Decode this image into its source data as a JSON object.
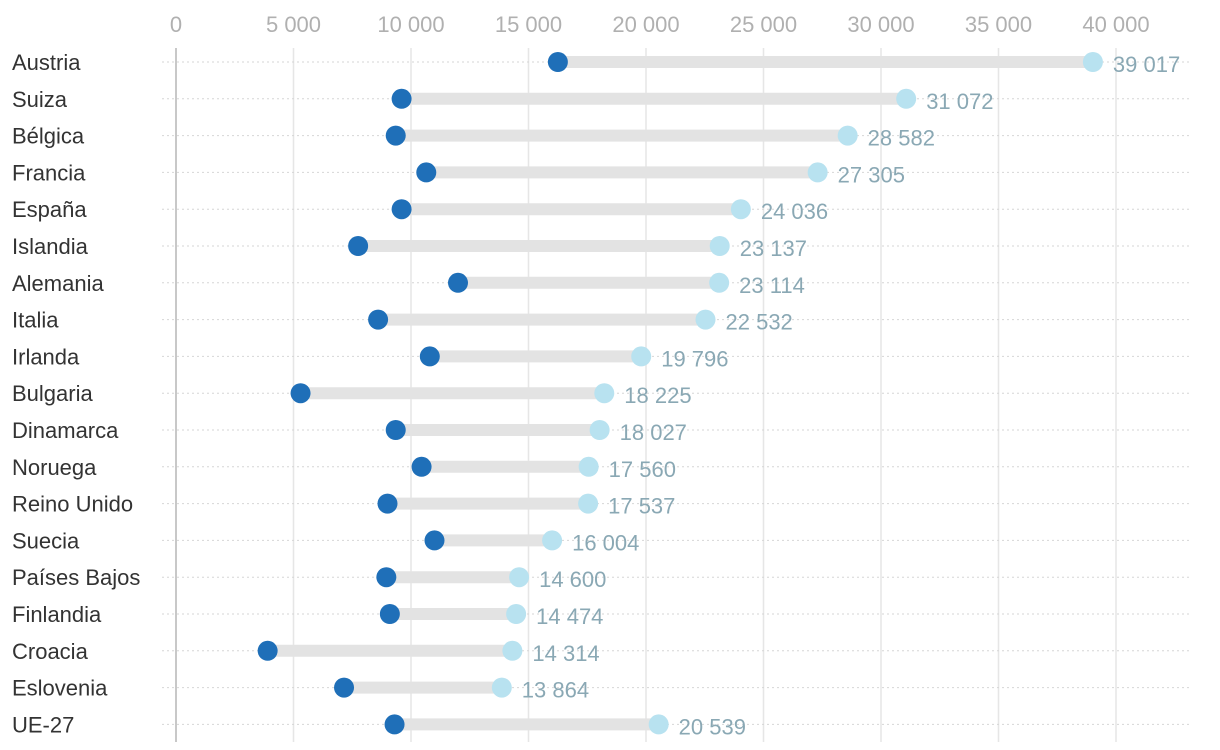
{
  "chart_data": {
    "type": "dumbbell",
    "title": "",
    "xlim": [
      0,
      40000
    ],
    "x_ticks": [
      0,
      5000,
      10000,
      15000,
      20000,
      25000,
      30000,
      35000,
      40000
    ],
    "x_tick_labels": [
      "0",
      "5 000",
      "10 000",
      "15 000",
      "20 000",
      "25 000",
      "30 000",
      "35 000",
      "40 000"
    ],
    "grid": true,
    "colors": {
      "start": "#1f6fb8",
      "end": "#b8e2f0",
      "bar": "#e3e3e3",
      "value_label": "#8aa8b4"
    },
    "categories": [
      "Austria",
      "Suiza",
      "Bélgica",
      "Francia",
      "España",
      "Islandia",
      "Alemania",
      "Italia",
      "Irlanda",
      "Bulgaria",
      "Dinamarca",
      "Noruega",
      "Reino Unido",
      "Suecia",
      "Países Bajos",
      "Finlandia",
      "Croacia",
      "Eslovenia",
      "UE-27"
    ],
    "start_values": [
      16250,
      9600,
      9350,
      10650,
      9600,
      7750,
      12000,
      8600,
      10800,
      5300,
      9350,
      10450,
      9000,
      11000,
      8950,
      9100,
      3900,
      7150,
      9300
    ],
    "end_values": [
      39017,
      31072,
      28582,
      27305,
      24036,
      23137,
      23114,
      22532,
      19796,
      18225,
      18027,
      17560,
      17537,
      16004,
      14600,
      14474,
      14314,
      13864,
      20539
    ],
    "end_labels": [
      "39 017",
      "31 072",
      "28 582",
      "27 305",
      "24 036",
      "23 137",
      "23 114",
      "22 532",
      "19 796",
      "18 225",
      "18 027",
      "17 560",
      "17 537",
      "16 004",
      "14 600",
      "14 474",
      "14 314",
      "13 864",
      "20 539"
    ]
  }
}
